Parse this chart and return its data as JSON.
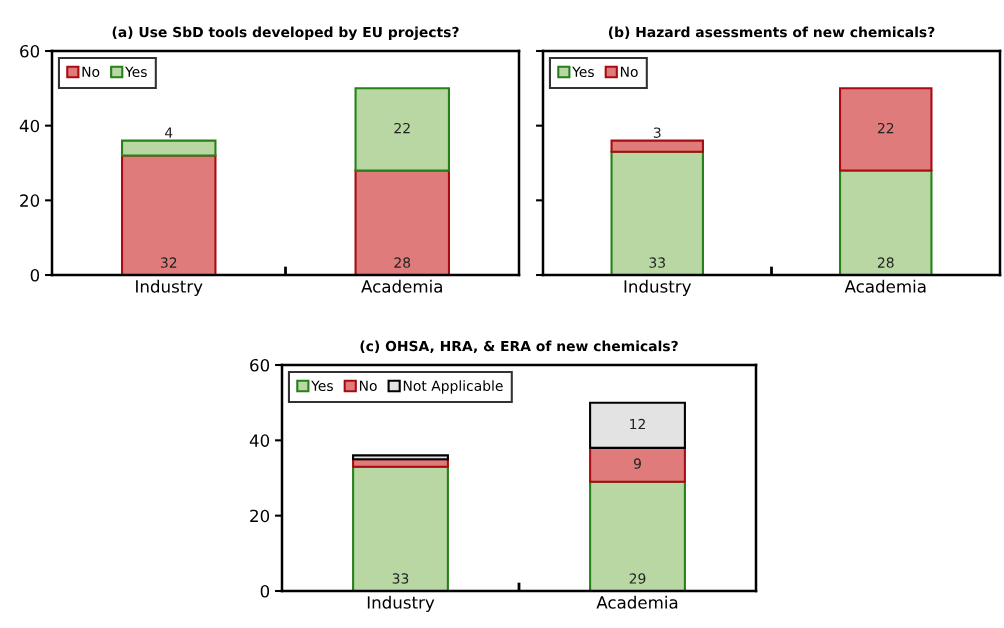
{
  "chart_data": [
    {
      "type": "bar",
      "stacked": true,
      "title": "(a) Use SbD tools developed by EU projects?",
      "categories": [
        "Industry",
        "Academia"
      ],
      "ylim": [
        0,
        60
      ],
      "yticks": [
        0,
        20,
        40,
        60
      ],
      "legend": "top left",
      "data_labels": true,
      "grid": false,
      "series": [
        {
          "name": "No",
          "color": "#e07b7b",
          "values": [
            32,
            28
          ]
        },
        {
          "name": "Yes",
          "color": "#b8d7a3",
          "values": [
            4,
            22
          ]
        }
      ]
    },
    {
      "type": "bar",
      "stacked": true,
      "title": "(b) Hazard asessments of new chemicals?",
      "categories": [
        "Industry",
        "Academia"
      ],
      "ylim": [
        0,
        60
      ],
      "yticks": [
        0,
        20,
        40,
        60
      ],
      "tick_labels": "x",
      "legend": "top left",
      "data_labels": true,
      "grid": false,
      "series": [
        {
          "name": "Yes",
          "color": "#b8d7a3",
          "values": [
            33,
            28
          ]
        },
        {
          "name": "No",
          "color": "#e07b7b",
          "values": [
            3,
            22
          ]
        }
      ]
    },
    {
      "type": "bar",
      "stacked": true,
      "title": "(c) OHSA, HRA, & ERA of new chemicals?",
      "categories": [
        "Industry",
        "Academia"
      ],
      "ylim": [
        0,
        60
      ],
      "yticks": [
        0,
        20,
        40,
        60
      ],
      "legend": "top left",
      "grid": false,
      "series": [
        {
          "name": "Yes",
          "color": "#b8d7a3",
          "values": [
            33,
            29
          ],
          "value_labels": [
            "33",
            "29"
          ]
        },
        {
          "name": "No",
          "color": "#e07b7b",
          "values": [
            2,
            9
          ],
          "value_labels": [
            null,
            "9"
          ]
        },
        {
          "name": "Not Applicable",
          "color": "#e3e3e3",
          "values": [
            1,
            12
          ],
          "value_labels": [
            null,
            "12"
          ]
        }
      ]
    }
  ]
}
